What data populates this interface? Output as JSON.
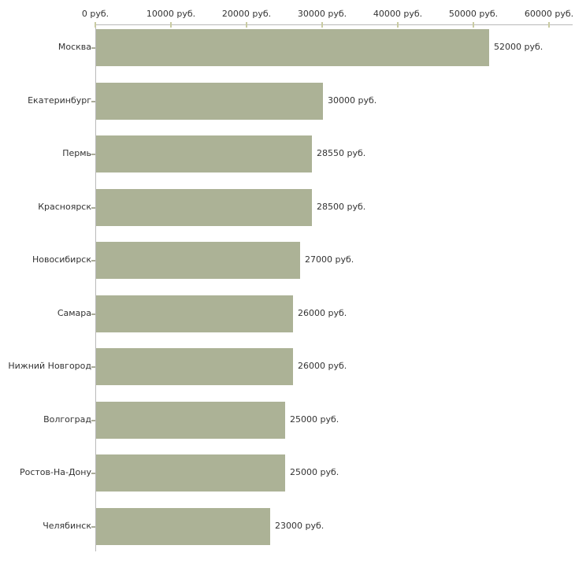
{
  "chart_data": {
    "type": "bar",
    "orientation": "horizontal",
    "title": "",
    "xlabel": "",
    "ylabel": "",
    "unit": "руб.",
    "categories": [
      "Москва",
      "Екатеринбург",
      "Пермь",
      "Красноярск",
      "Новосибирск",
      "Самара",
      "Нижний Новгород",
      "Волгоград",
      "Ростов-На-Дону",
      "Челябинск"
    ],
    "values": [
      52000,
      30000,
      28550,
      28500,
      27000,
      26000,
      26000,
      25000,
      25000,
      23000
    ],
    "value_labels": [
      "52000 руб.",
      "30000 руб.",
      "28550 руб.",
      "28500 руб.",
      "27000 руб.",
      "26000 руб.",
      "26000 руб.",
      "25000 руб.",
      "25000 руб.",
      "23000 руб."
    ],
    "x_ticks": [
      0,
      10000,
      20000,
      30000,
      40000,
      50000,
      60000
    ],
    "x_tick_labels": [
      "0 руб.",
      "10000 руб.",
      "20000 руб.",
      "30000 руб.",
      "40000 руб.",
      "50000 руб.",
      "60000 руб."
    ],
    "xlim": [
      0,
      60000
    ],
    "grid": false,
    "legend": "none",
    "axis_labels_position": "top",
    "colors": {
      "bar": "#acb296",
      "axis_line": "#b9b9b9",
      "tick_mark": "#c9cba2",
      "text": "#333333",
      "background": "#ffffff"
    }
  }
}
